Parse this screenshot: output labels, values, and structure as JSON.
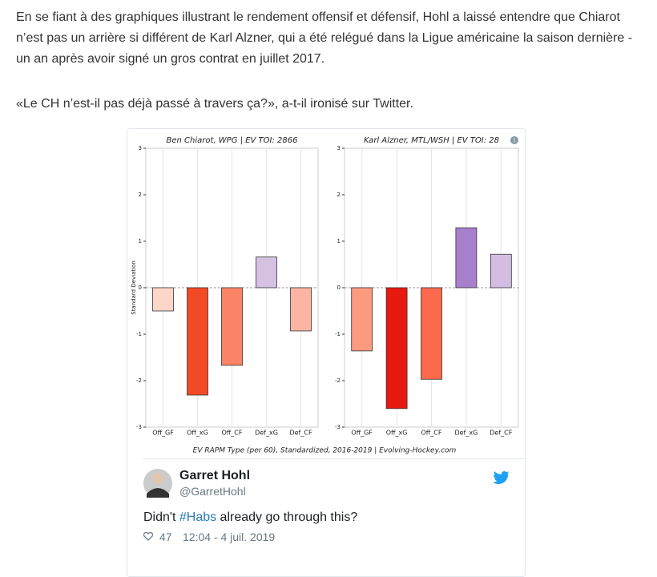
{
  "article": {
    "paragraphs": [
      [
        "En se fiant à des graphiques illustrant le rendement offensif et défensif, Hohl a laissé entendre que Chiarot",
        "n’est pas un arrière si différent de Karl Alzner, qui a été relégué dans la Ligue américaine la saison dernière -",
        "un an après avoir signé un gros contrat en juillet 2017."
      ],
      [
        "«Le CH n’est-il pas déjà passé à travers ça?», a-t-il ironisé sur Twitter."
      ]
    ]
  },
  "chart_data": [
    {
      "type": "bar",
      "title": "Ben Chiarot, WPG  |  EV TOI: 2866",
      "y_label": "Standard Deviation",
      "categories": [
        "Off_GF",
        "Off_xG",
        "Off_CF",
        "Def_xG",
        "Def_CF"
      ],
      "values": [
        -0.5,
        -2.31,
        -1.67,
        0.66,
        -0.93
      ],
      "colors": [
        "#fdd5c9",
        "#f34a26",
        "#fc8466",
        "#d6c1e3",
        "#fcb5a2"
      ],
      "ylim": [
        -3,
        3
      ],
      "yticks": [
        -3,
        -2,
        -1,
        0,
        1,
        2,
        3
      ]
    },
    {
      "type": "bar",
      "title": "Karl Alzner, MTL/WSH  |  EV TOI: 28",
      "categories": [
        "Off_GF",
        "Off_xG",
        "Off_CF",
        "Def_xG",
        "Def_CF"
      ],
      "values": [
        -1.36,
        -2.6,
        -1.97,
        1.29,
        0.72
      ],
      "colors": [
        "#fc9a80",
        "#e8190f",
        "#fb6a4c",
        "#a87fcc",
        "#d4bde2"
      ],
      "ylim": [
        -3,
        3
      ],
      "yticks": [
        -3,
        -2,
        -1,
        0,
        1,
        2,
        3
      ]
    }
  ],
  "figure": {
    "caption": "EV RAPM Type (per 60), Standardized, 2016-2019   |   Evolving-Hockey.com"
  },
  "tweet": {
    "name": "Garret Hohl",
    "handle": "@GarretHohl",
    "text": [
      "Didn't ",
      "#Habs",
      " already go through this?"
    ],
    "likes": 47,
    "date": "12:04 - 4 juil. 2019"
  }
}
